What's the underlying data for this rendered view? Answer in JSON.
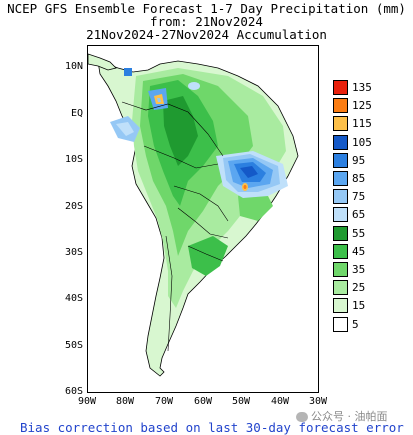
{
  "title": {
    "line1": "NCEP GFS Ensemble Forecast 1-7 Day Precipitation (mm)",
    "line2": "from: 21Nov2024",
    "line3": "21Nov2024-27Nov2024 Accumulation"
  },
  "axes": {
    "lat_labels": [
      "10N",
      "EQ",
      "10S",
      "20S",
      "30S",
      "40S",
      "50S",
      "60S"
    ],
    "lon_labels": [
      "90W",
      "80W",
      "70W",
      "60W",
      "50W",
      "40W",
      "30W"
    ]
  },
  "legend": {
    "unit": "mm",
    "bins": [
      {
        "label": "135",
        "color": "#e8200c"
      },
      {
        "label": "125",
        "color": "#fb7d13"
      },
      {
        "label": "115",
        "color": "#fdc049"
      },
      {
        "label": "105",
        "color": "#1459c8"
      },
      {
        "label": "95",
        "color": "#2b7fe0"
      },
      {
        "label": "85",
        "color": "#5ba6f0"
      },
      {
        "label": "75",
        "color": "#95c8f5"
      },
      {
        "label": "65",
        "color": "#bfe0fa"
      },
      {
        "label": "55",
        "color": "#1f9a30"
      },
      {
        "label": "45",
        "color": "#3cbf4a"
      },
      {
        "label": "35",
        "color": "#6fd76a"
      },
      {
        "label": "25",
        "color": "#a9eba0"
      },
      {
        "label": "15",
        "color": "#d8f7d0"
      },
      {
        "label": "5",
        "color": "#ffffff"
      }
    ]
  },
  "footer": "Bias correction based on last 30-day forecast error",
  "watermark": "公众号 · 油帕面"
}
